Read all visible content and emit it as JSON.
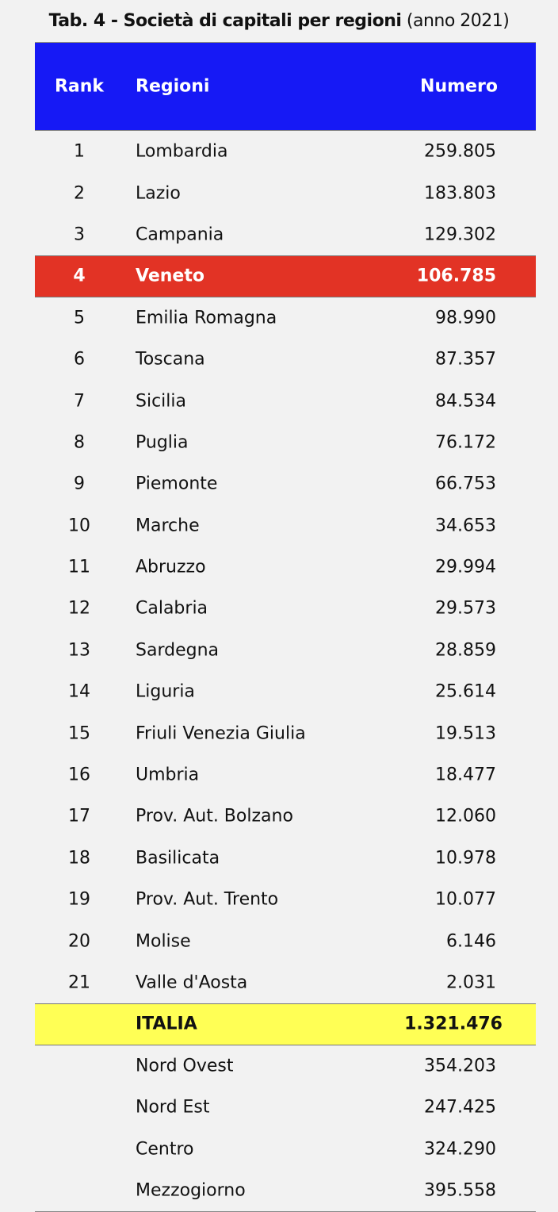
{
  "title": {
    "bold": "Tab. 4 - Società di capitali per regioni",
    "normal": "(anno 2021)"
  },
  "header": {
    "rank": "Rank",
    "region": "Regioni",
    "number": "Numero"
  },
  "colors": {
    "header_bg": "#1619f5",
    "highlight_bg": "#e23325",
    "total_bg": "#ffff55"
  },
  "rows": [
    {
      "rank": "1",
      "region": "Lombardia",
      "number": "259.805"
    },
    {
      "rank": "2",
      "region": "Lazio",
      "number": "183.803"
    },
    {
      "rank": "3",
      "region": "Campania",
      "number": "129.302"
    },
    {
      "rank": "4",
      "region": "Veneto",
      "number": "106.785",
      "highlight": true
    },
    {
      "rank": "5",
      "region": "Emilia Romagna",
      "number": "98.990"
    },
    {
      "rank": "6",
      "region": "Toscana",
      "number": "87.357"
    },
    {
      "rank": "7",
      "region": "Sicilia",
      "number": "84.534"
    },
    {
      "rank": "8",
      "region": "Puglia",
      "number": "76.172"
    },
    {
      "rank": "9",
      "region": "Piemonte",
      "number": "66.753"
    },
    {
      "rank": "10",
      "region": "Marche",
      "number": "34.653"
    },
    {
      "rank": "11",
      "region": "Abruzzo",
      "number": "29.994"
    },
    {
      "rank": "12",
      "region": "Calabria",
      "number": "29.573"
    },
    {
      "rank": "13",
      "region": "Sardegna",
      "number": "28.859"
    },
    {
      "rank": "14",
      "region": "Liguria",
      "number": "25.614"
    },
    {
      "rank": "15",
      "region": "Friuli Venezia Giulia",
      "number": "19.513"
    },
    {
      "rank": "16",
      "region": "Umbria",
      "number": "18.477"
    },
    {
      "rank": "17",
      "region": "Prov. Aut. Bolzano",
      "number": "12.060"
    },
    {
      "rank": "18",
      "region": "Basilicata",
      "number": "10.978"
    },
    {
      "rank": "19",
      "region": "Prov. Aut. Trento",
      "number": "10.077"
    },
    {
      "rank": "20",
      "region": "Molise",
      "number": "6.146"
    },
    {
      "rank": "21",
      "region": "Valle d'Aosta",
      "number": "2.031"
    }
  ],
  "total": {
    "region": "ITALIA",
    "number": "1.321.476"
  },
  "areas": [
    {
      "region": "Nord Ovest",
      "number": "354.203"
    },
    {
      "region": "Nord Est",
      "number": "247.425"
    },
    {
      "region": "Centro",
      "number": "324.290"
    },
    {
      "region": "Mezzogiorno",
      "number": "395.558"
    }
  ]
}
